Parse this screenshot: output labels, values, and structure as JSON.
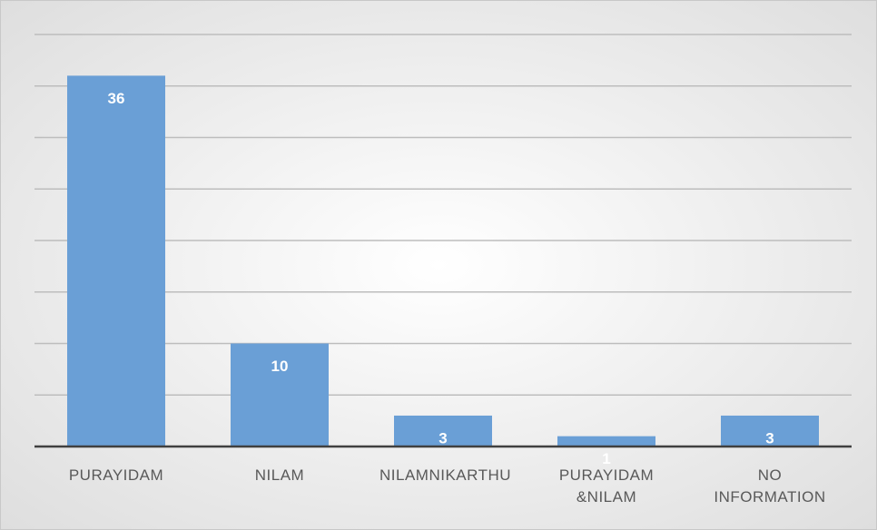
{
  "chart_data": {
    "type": "bar",
    "categories": [
      "PURAYIDAM",
      "NILAM",
      "NILAMNIKARTHU",
      "PURAYIDAM &NILAM",
      "NO INFORMATION"
    ],
    "values": [
      36,
      10,
      3,
      1,
      3
    ],
    "color": "#6a9fd6",
    "ylim": [
      0,
      40
    ],
    "yticks": [
      0,
      5,
      10,
      15,
      20,
      25,
      30,
      35,
      40
    ],
    "grid": true
  }
}
